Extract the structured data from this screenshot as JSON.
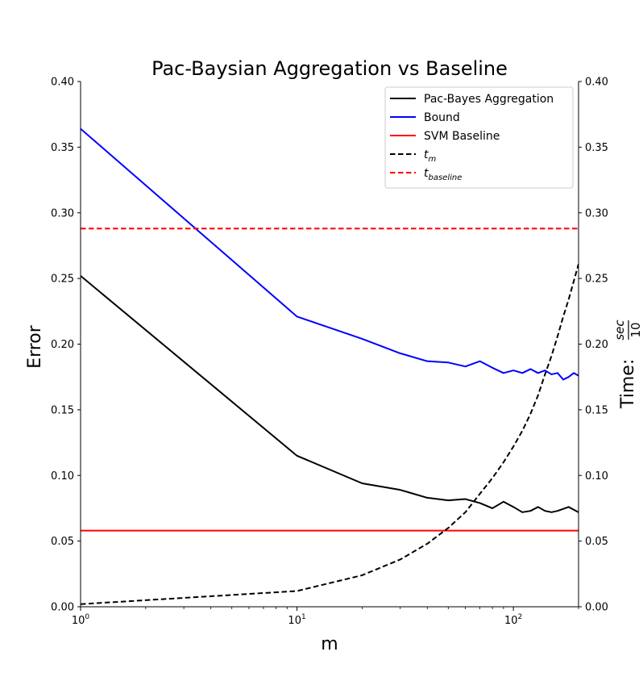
{
  "chart_data": {
    "type": "line",
    "title": "Pac-Baysian Aggregation vs Baseline",
    "xlabel": "m",
    "ylabel": "Error",
    "y2label": "Time: sec/10",
    "y2label_parts": {
      "prefix": "Time: ",
      "num": "sec",
      "den": "10"
    },
    "xscale": "log",
    "xlim": [
      1,
      200
    ],
    "ylim": [
      0,
      0.4
    ],
    "y2lim": [
      0,
      0.4
    ],
    "x_ticks": [
      {
        "value": 1,
        "base": "10",
        "exp": "0"
      },
      {
        "value": 10,
        "base": "10",
        "exp": "1"
      },
      {
        "value": 100,
        "base": "10",
        "exp": "2"
      }
    ],
    "y_ticks": [
      "0.00",
      "0.05",
      "0.10",
      "0.15",
      "0.20",
      "0.25",
      "0.30",
      "0.35",
      "0.40"
    ],
    "legend_position": "top-right",
    "grid": false,
    "series": [
      {
        "name": "Pac-Bayes Aggregation",
        "color": "#000000",
        "dash": "solid",
        "axis": "left",
        "points": [
          [
            1,
            0.252
          ],
          [
            10,
            0.115
          ],
          [
            20,
            0.094
          ],
          [
            30,
            0.089
          ],
          [
            40,
            0.083
          ],
          [
            50,
            0.081
          ],
          [
            60,
            0.082
          ],
          [
            70,
            0.079
          ],
          [
            80,
            0.075
          ],
          [
            90,
            0.08
          ],
          [
            100,
            0.076
          ],
          [
            110,
            0.072
          ],
          [
            120,
            0.073
          ],
          [
            130,
            0.076
          ],
          [
            140,
            0.073
          ],
          [
            150,
            0.072
          ],
          [
            160,
            0.073
          ],
          [
            180,
            0.076
          ],
          [
            200,
            0.072
          ]
        ]
      },
      {
        "name": "Bound",
        "color": "#0000ff",
        "dash": "solid",
        "axis": "left",
        "points": [
          [
            1,
            0.364
          ],
          [
            10,
            0.221
          ],
          [
            20,
            0.204
          ],
          [
            30,
            0.193
          ],
          [
            40,
            0.187
          ],
          [
            50,
            0.186
          ],
          [
            60,
            0.183
          ],
          [
            70,
            0.187
          ],
          [
            80,
            0.182
          ],
          [
            90,
            0.178
          ],
          [
            100,
            0.18
          ],
          [
            110,
            0.178
          ],
          [
            120,
            0.181
          ],
          [
            130,
            0.178
          ],
          [
            140,
            0.18
          ],
          [
            150,
            0.177
          ],
          [
            160,
            0.178
          ],
          [
            170,
            0.173
          ],
          [
            180,
            0.175
          ],
          [
            190,
            0.178
          ],
          [
            200,
            0.176
          ]
        ]
      },
      {
        "name": "SVM Baseline",
        "color": "#ff0000",
        "dash": "solid",
        "axis": "left",
        "points": [
          [
            1,
            0.058
          ],
          [
            200,
            0.058
          ]
        ]
      },
      {
        "name": "t_m",
        "label_base": "t",
        "label_sub": "m",
        "color": "#000000",
        "dash": "dashed",
        "axis": "right",
        "points": [
          [
            1,
            0.002
          ],
          [
            10,
            0.012
          ],
          [
            20,
            0.024
          ],
          [
            30,
            0.036
          ],
          [
            40,
            0.048
          ],
          [
            50,
            0.06
          ],
          [
            60,
            0.072
          ],
          [
            70,
            0.086
          ],
          [
            80,
            0.098
          ],
          [
            90,
            0.11
          ],
          [
            100,
            0.122
          ],
          [
            110,
            0.134
          ],
          [
            120,
            0.147
          ],
          [
            130,
            0.161
          ],
          [
            140,
            0.177
          ],
          [
            150,
            0.191
          ],
          [
            160,
            0.206
          ],
          [
            170,
            0.221
          ],
          [
            180,
            0.234
          ],
          [
            200,
            0.261
          ]
        ]
      },
      {
        "name": "t_baseline",
        "label_base": "t",
        "label_sub": "baseline",
        "color": "#ff0000",
        "dash": "dashed",
        "axis": "left",
        "points": [
          [
            1,
            0.288
          ],
          [
            200,
            0.288
          ]
        ]
      }
    ]
  }
}
